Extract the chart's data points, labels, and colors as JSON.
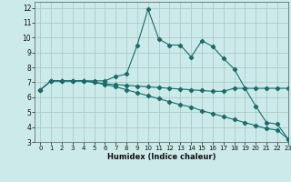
{
  "xlabel": "Humidex (Indice chaleur)",
  "bg_color": "#cdeaea",
  "grid_color": "#aacccc",
  "line_color": "#1a6b6b",
  "xlim": [
    -0.5,
    23
  ],
  "ylim": [
    3,
    12.4
  ],
  "yticks": [
    3,
    4,
    5,
    6,
    7,
    8,
    9,
    10,
    11,
    12
  ],
  "xticks": [
    0,
    1,
    2,
    3,
    4,
    5,
    6,
    7,
    8,
    9,
    10,
    11,
    12,
    13,
    14,
    15,
    16,
    17,
    18,
    19,
    20,
    21,
    22,
    23
  ],
  "line1_x": [
    0,
    1,
    2,
    3,
    4,
    5,
    6,
    7,
    8,
    9,
    10,
    11,
    12,
    13,
    14,
    15,
    16,
    17,
    18,
    19,
    20,
    21,
    22,
    23
  ],
  "line1_y": [
    6.5,
    7.1,
    7.1,
    7.1,
    7.1,
    7.1,
    7.1,
    7.4,
    7.55,
    9.5,
    11.9,
    9.9,
    9.5,
    9.5,
    8.7,
    9.8,
    9.4,
    8.6,
    7.9,
    6.6,
    5.4,
    4.3,
    4.2,
    3.2
  ],
  "line2_x": [
    0,
    1,
    2,
    3,
    4,
    5,
    6,
    7,
    8,
    9,
    10,
    11,
    12,
    13,
    14,
    15,
    16,
    17,
    18,
    19,
    20,
    21,
    22,
    23
  ],
  "line2_y": [
    6.5,
    7.1,
    7.1,
    7.1,
    7.1,
    7.0,
    6.9,
    6.85,
    6.8,
    6.75,
    6.7,
    6.65,
    6.6,
    6.55,
    6.5,
    6.45,
    6.4,
    6.4,
    6.6,
    6.6,
    6.6,
    6.6,
    6.6,
    6.6
  ],
  "line3_x": [
    0,
    1,
    2,
    3,
    4,
    5,
    6,
    7,
    8,
    9,
    10,
    11,
    12,
    13,
    14,
    15,
    16,
    17,
    18,
    19,
    20,
    21,
    22,
    23
  ],
  "line3_y": [
    6.5,
    7.1,
    7.1,
    7.1,
    7.1,
    7.0,
    6.85,
    6.7,
    6.5,
    6.3,
    6.1,
    5.9,
    5.7,
    5.5,
    5.35,
    5.1,
    4.9,
    4.7,
    4.5,
    4.3,
    4.1,
    3.9,
    3.8,
    3.2
  ]
}
